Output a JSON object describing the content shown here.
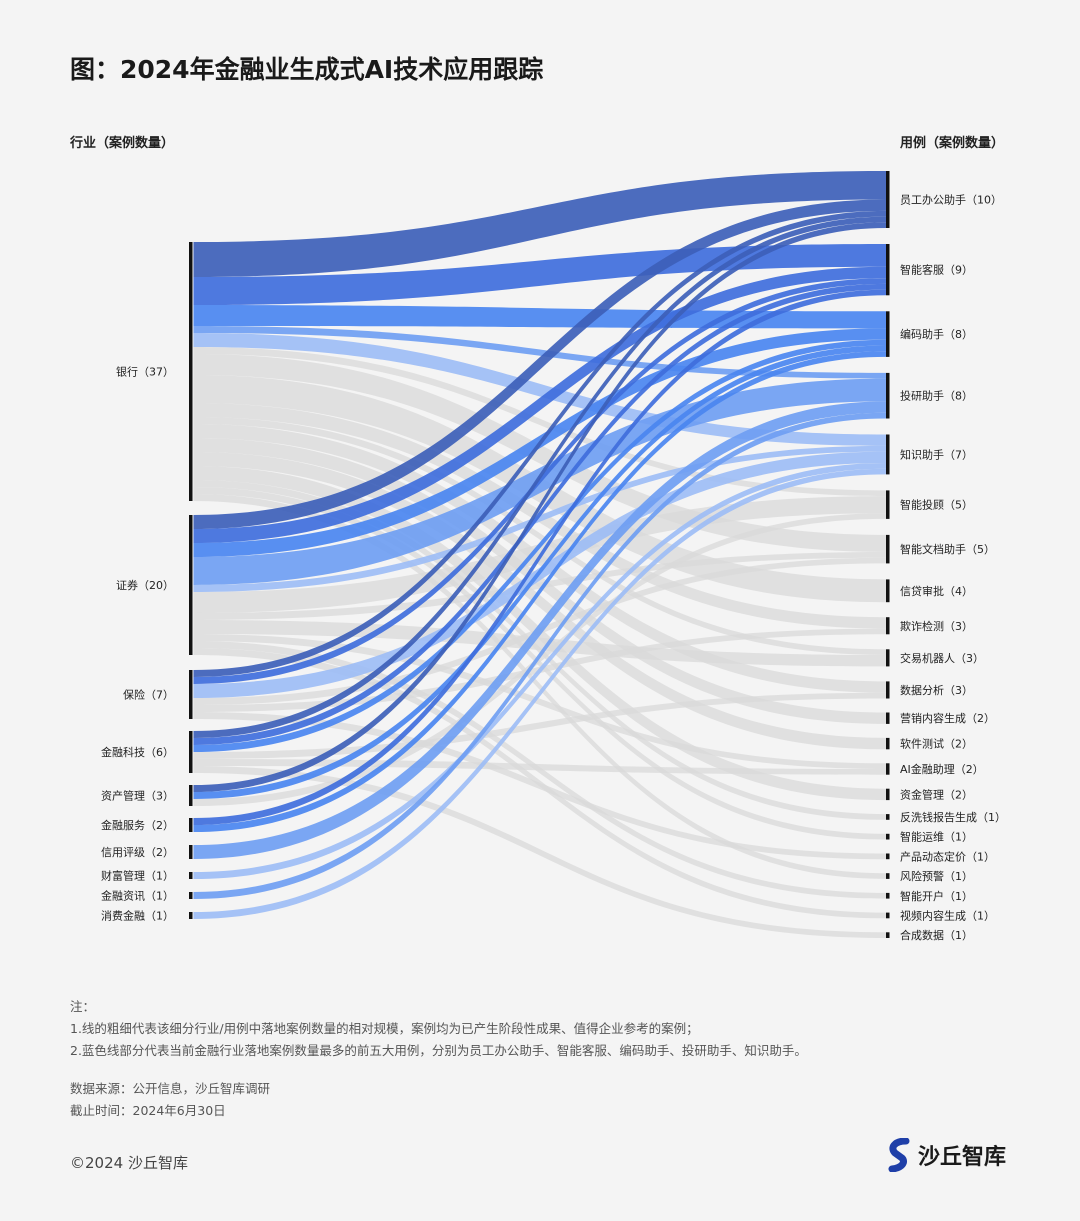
{
  "title": "图：2024年金融业生成式AI技术应用跟踪",
  "left_header": "行业（案例数量）",
  "right_header": "用例（案例数量）",
  "notes": {
    "label": "注：",
    "line1": "1.线的粗细代表该细分行业/用例中落地案例数量的相对规模，案例均为已产生阶段性成果、值得企业参考的案例；",
    "line2": "2.蓝色线部分代表当前金融行业落地案例数量最多的前五大用例，分别为员工办公助手、智能客服、编码助手、投研助手、知识助手。"
  },
  "source": {
    "line1": "数据来源：公开信息，沙丘智库调研",
    "line2": "截止时间：2024年6月30日"
  },
  "copyright": "©2024 沙丘智库",
  "logo_text": "沙丘智库",
  "colors": {
    "员工办公助手": "#3d5fb8",
    "智能客服": "#3f6edc",
    "编码助手": "#4a86f0",
    "投研助手": "#6f9ef2",
    "知识助手": "#9dbdf5",
    "other": "#d9d9d9"
  },
  "chart_data": {
    "type": "sankey",
    "sources": [
      {
        "name": "银行",
        "count": 37,
        "label": "银行（37）"
      },
      {
        "name": "证券",
        "count": 20,
        "label": "证券（20）"
      },
      {
        "name": "保险",
        "count": 7,
        "label": "保险（7）"
      },
      {
        "name": "金融科技",
        "count": 6,
        "label": "金融科技（6）"
      },
      {
        "name": "资产管理",
        "count": 3,
        "label": "资产管理（3）"
      },
      {
        "name": "金融服务",
        "count": 2,
        "label": "金融服务（2）"
      },
      {
        "name": "信用评级",
        "count": 2,
        "label": "信用评级（2）"
      },
      {
        "name": "财富管理",
        "count": 1,
        "label": "财富管理（1）"
      },
      {
        "name": "金融资讯",
        "count": 1,
        "label": "金融资讯（1）"
      },
      {
        "name": "消费金融",
        "count": 1,
        "label": "消费金融（1）"
      }
    ],
    "targets": [
      {
        "name": "员工办公助手",
        "count": 10,
        "label": "员工办公助手（10）"
      },
      {
        "name": "智能客服",
        "count": 9,
        "label": "智能客服（9）"
      },
      {
        "name": "编码助手",
        "count": 8,
        "label": "编码助手（8）"
      },
      {
        "name": "投研助手",
        "count": 8,
        "label": "投研助手（8）"
      },
      {
        "name": "知识助手",
        "count": 7,
        "label": "知识助手（7）"
      },
      {
        "name": "智能投顾",
        "count": 5,
        "label": "智能投顾（5）"
      },
      {
        "name": "智能文档助手",
        "count": 5,
        "label": "智能文档助手（5）"
      },
      {
        "name": "信贷审批",
        "count": 4,
        "label": "信贷审批（4）"
      },
      {
        "name": "欺诈检测",
        "count": 3,
        "label": "欺诈检测（3）"
      },
      {
        "name": "交易机器人",
        "count": 3,
        "label": "交易机器人（3）"
      },
      {
        "name": "数据分析",
        "count": 3,
        "label": "数据分析（3）"
      },
      {
        "name": "营销内容生成",
        "count": 2,
        "label": "营销内容生成（2）"
      },
      {
        "name": "软件测试",
        "count": 2,
        "label": "软件测试（2）"
      },
      {
        "name": "AI金融助理",
        "count": 2,
        "label": "AI金融助理（2）"
      },
      {
        "name": "资金管理",
        "count": 2,
        "label": "资金管理（2）"
      },
      {
        "name": "反洗钱报告生成",
        "count": 1,
        "label": "反洗钱报告生成（1）"
      },
      {
        "name": "智能运维",
        "count": 1,
        "label": "智能运维（1）"
      },
      {
        "name": "产品动态定价",
        "count": 1,
        "label": "产品动态定价（1）"
      },
      {
        "name": "风险预警",
        "count": 1,
        "label": "风险预警（1）"
      },
      {
        "name": "智能开户",
        "count": 1,
        "label": "智能开户（1）"
      },
      {
        "name": "视频内容生成",
        "count": 1,
        "label": "视频内容生成（1）"
      },
      {
        "name": "合成数据",
        "count": 1,
        "label": "合成数据（1）"
      }
    ],
    "links": [
      {
        "source": "银行",
        "target": "员工办公助手",
        "value": 5
      },
      {
        "source": "银行",
        "target": "智能客服",
        "value": 4
      },
      {
        "source": "银行",
        "target": "编码助手",
        "value": 3
      },
      {
        "source": "银行",
        "target": "投研助手",
        "value": 1
      },
      {
        "source": "银行",
        "target": "知识助手",
        "value": 2
      },
      {
        "source": "银行",
        "target": "智能投顾",
        "value": 1
      },
      {
        "source": "银行",
        "target": "智能文档助手",
        "value": 3
      },
      {
        "source": "银行",
        "target": "信贷审批",
        "value": 4
      },
      {
        "source": "银行",
        "target": "欺诈检测",
        "value": 2
      },
      {
        "source": "银行",
        "target": "交易机器人",
        "value": 1
      },
      {
        "source": "银行",
        "target": "数据分析",
        "value": 2
      },
      {
        "source": "银行",
        "target": "营销内容生成",
        "value": 2
      },
      {
        "source": "银行",
        "target": "软件测试",
        "value": 2
      },
      {
        "source": "银行",
        "target": "资金管理",
        "value": 2
      },
      {
        "source": "银行",
        "target": "反洗钱报告生成",
        "value": 1
      },
      {
        "source": "银行",
        "target": "智能运维",
        "value": 1
      },
      {
        "source": "银行",
        "target": "风险预警",
        "value": 1
      },
      {
        "source": "证券",
        "target": "员工办公助手",
        "value": 2
      },
      {
        "source": "证券",
        "target": "智能客服",
        "value": 2
      },
      {
        "source": "证券",
        "target": "编码助手",
        "value": 2
      },
      {
        "source": "证券",
        "target": "投研助手",
        "value": 4
      },
      {
        "source": "证券",
        "target": "知识助手",
        "value": 1
      },
      {
        "source": "证券",
        "target": "智能投顾",
        "value": 3
      },
      {
        "source": "证券",
        "target": "智能文档助手",
        "value": 1
      },
      {
        "source": "证券",
        "target": "交易机器人",
        "value": 2
      },
      {
        "source": "证券",
        "target": "AI金融助理",
        "value": 1
      },
      {
        "source": "证券",
        "target": "智能开户",
        "value": 1
      },
      {
        "source": "证券",
        "target": "视频内容生成",
        "value": 1
      },
      {
        "source": "保险",
        "target": "员工办公助手",
        "value": 1
      },
      {
        "source": "保险",
        "target": "智能客服",
        "value": 1
      },
      {
        "source": "保险",
        "target": "知识助手",
        "value": 2
      },
      {
        "source": "保险",
        "target": "欺诈检测",
        "value": 1
      },
      {
        "source": "保险",
        "target": "产品动态定价",
        "value": 1
      },
      {
        "source": "保险",
        "target": "智能文档助手",
        "value": 1
      },
      {
        "source": "金融科技",
        "target": "员工办公助手",
        "value": 1
      },
      {
        "source": "金融科技",
        "target": "智能客服",
        "value": 1
      },
      {
        "source": "金融科技",
        "target": "编码助手",
        "value": 1
      },
      {
        "source": "金融科技",
        "target": "数据分析",
        "value": 1
      },
      {
        "source": "金融科技",
        "target": "AI金融助理",
        "value": 1
      },
      {
        "source": "金融科技",
        "target": "合成数据",
        "value": 1
      },
      {
        "source": "资产管理",
        "target": "员工办公助手",
        "value": 1
      },
      {
        "source": "资产管理",
        "target": "编码助手",
        "value": 1
      },
      {
        "source": "资产管理",
        "target": "智能投顾",
        "value": 1
      },
      {
        "source": "金融服务",
        "target": "编码助手",
        "value": 1
      },
      {
        "source": "金融服务",
        "target": "智能客服",
        "value": 1
      },
      {
        "source": "信用评级",
        "target": "投研助手",
        "value": 2
      },
      {
        "source": "财富管理",
        "target": "知识助手",
        "value": 1
      },
      {
        "source": "金融资讯",
        "target": "投研助手",
        "value": 1
      },
      {
        "source": "消费金融",
        "target": "知识助手",
        "value": 1
      }
    ]
  }
}
